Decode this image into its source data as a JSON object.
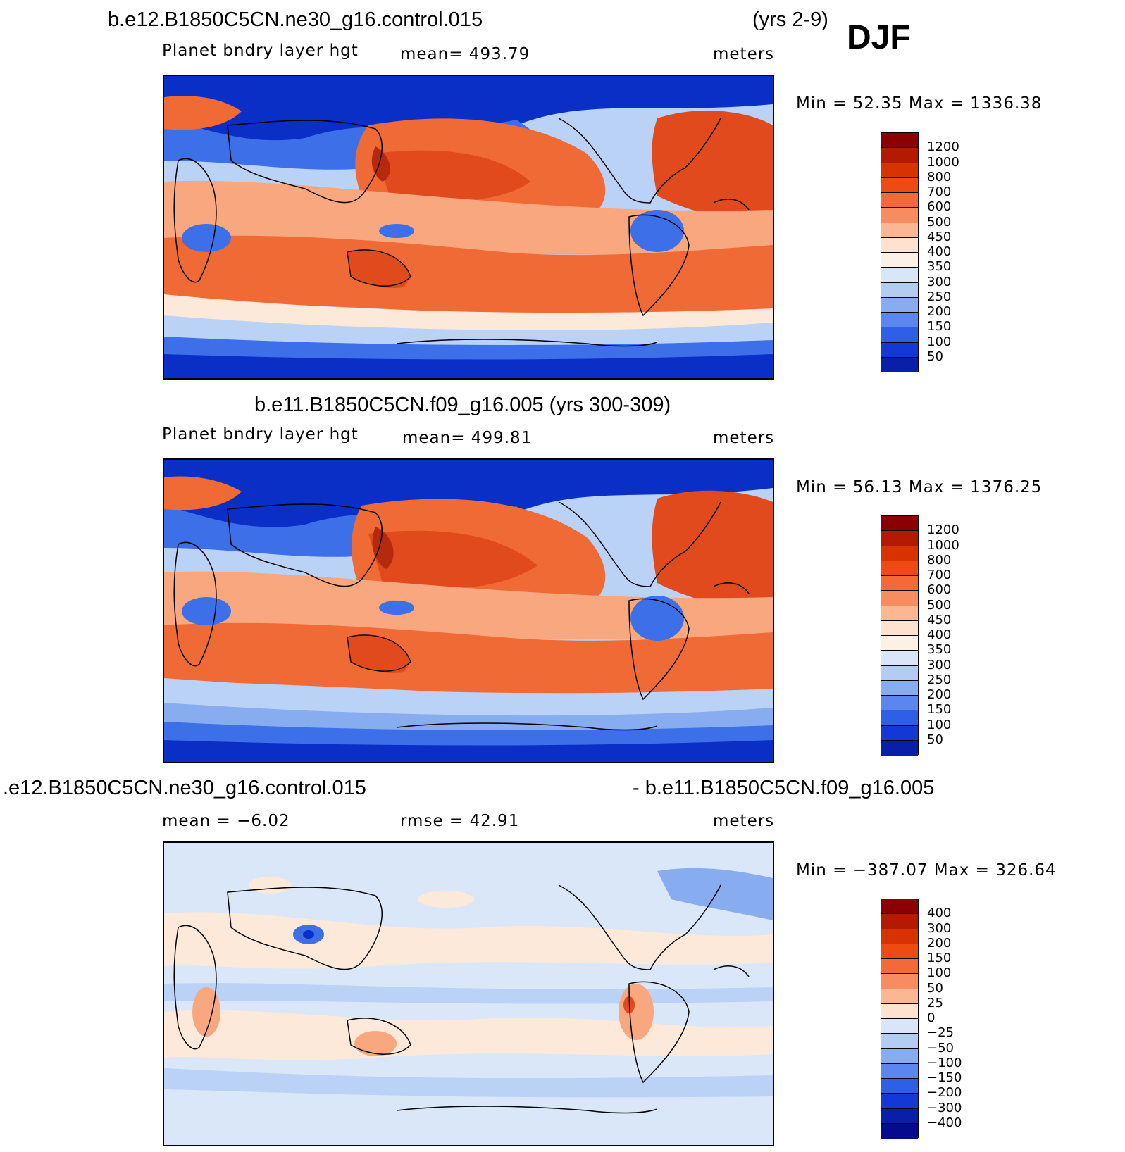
{
  "season": "DJF",
  "panels": [
    {
      "title_left": "b.e12.B1850C5CN.ne30_g16.control.015",
      "title_right": "(yrs 2-9)",
      "sub_left": "Planet bndry layer hgt",
      "sub_mid": "mean=  493.79",
      "sub_right": "meters",
      "minmax": "Min =   52.35 Max =  1336.38",
      "colorbar_labels": [
        "1200",
        "1000",
        "800",
        "700",
        "600",
        "500",
        "450",
        "400",
        "350",
        "300",
        "250",
        "200",
        "150",
        "100",
        "50"
      ],
      "colorbar_colors": [
        "#8b0000",
        "#b41a00",
        "#d73300",
        "#ee4a14",
        "#f4693a",
        "#f78c60",
        "#fbb692",
        "#fde3cf",
        "#fdf1e6",
        "#d8e6f7",
        "#b3cdf2",
        "#87adf0",
        "#5a86ee",
        "#2f5fe6",
        "#1438d6",
        "#0a1fa8"
      ]
    },
    {
      "title_center": "b.e11.B1850C5CN.f09_g16.005 (yrs 300-309)",
      "sub_left": "Planet bndry layer hgt",
      "sub_mid": "mean=  499.81",
      "sub_right": "meters",
      "minmax": "Min =   56.13 Max =  1376.25",
      "colorbar_labels": [
        "1200",
        "1000",
        "800",
        "700",
        "600",
        "500",
        "450",
        "400",
        "350",
        "300",
        "250",
        "200",
        "150",
        "100",
        "50"
      ],
      "colorbar_colors": [
        "#8b0000",
        "#b41a00",
        "#d73300",
        "#ee4a14",
        "#f4693a",
        "#f78c60",
        "#fbb692",
        "#fde3cf",
        "#fdf1e6",
        "#d8e6f7",
        "#b3cdf2",
        "#87adf0",
        "#5a86ee",
        "#2f5fe6",
        "#1438d6",
        "#0a1fa8"
      ]
    },
    {
      "title_left": ".e12.B1850C5CN.ne30_g16.control.015",
      "title_right": "- b.e11.B1850C5CN.f09_g16.005",
      "sub_left": "mean =   −6.02",
      "sub_mid": "rmse =   42.91",
      "sub_right": "meters",
      "minmax": "Min = −387.07 Max =  326.64",
      "colorbar_labels": [
        "400",
        "300",
        "200",
        "150",
        "100",
        "50",
        "25",
        "0",
        "−25",
        "−50",
        "−100",
        "−150",
        "−200",
        "−300",
        "−400"
      ],
      "colorbar_colors": [
        "#8b0000",
        "#b41a00",
        "#d73300",
        "#ee4a14",
        "#f4693a",
        "#f78c60",
        "#fbb692",
        "#fde3cf",
        "#d8e6f7",
        "#b3cdf2",
        "#87adf0",
        "#5a86ee",
        "#2f5fe6",
        "#1438d6",
        "#0a1fa8",
        "#060a8c"
      ]
    }
  ],
  "palette": {
    "deep_blue": "#0a2fc6",
    "mid_blue": "#3c6fe8",
    "light_blue": "#b9d2f5",
    "pale_blue": "#d9e7f8",
    "cream": "#fde9d9",
    "peach": "#f9a77f",
    "orange": "#f06a36",
    "red_orange": "#e04a1c",
    "dark_red": "#b52a0e",
    "coast": "#000000"
  }
}
